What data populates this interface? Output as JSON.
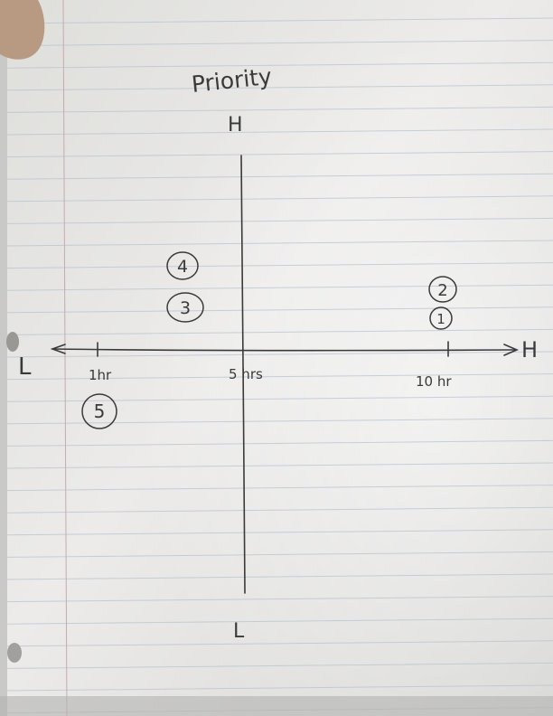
{
  "title": "Priority",
  "y_axis": {
    "top_label": "H",
    "bottom_label": "L"
  },
  "x_axis": {
    "left_label": "L",
    "right_label": "H",
    "ticks": [
      "1hr",
      "5 hrs",
      "10 hr"
    ]
  },
  "chart_data": {
    "type": "scatter",
    "title": "Priority",
    "x_labels": [
      "1hr",
      "5 hrs",
      "10 hr"
    ],
    "y_labels": [
      "L",
      "H"
    ],
    "points": [
      {
        "label": "1"
      },
      {
        "label": "2"
      },
      {
        "label": "3"
      },
      {
        "label": "4"
      },
      {
        "label": "5"
      }
    ]
  }
}
